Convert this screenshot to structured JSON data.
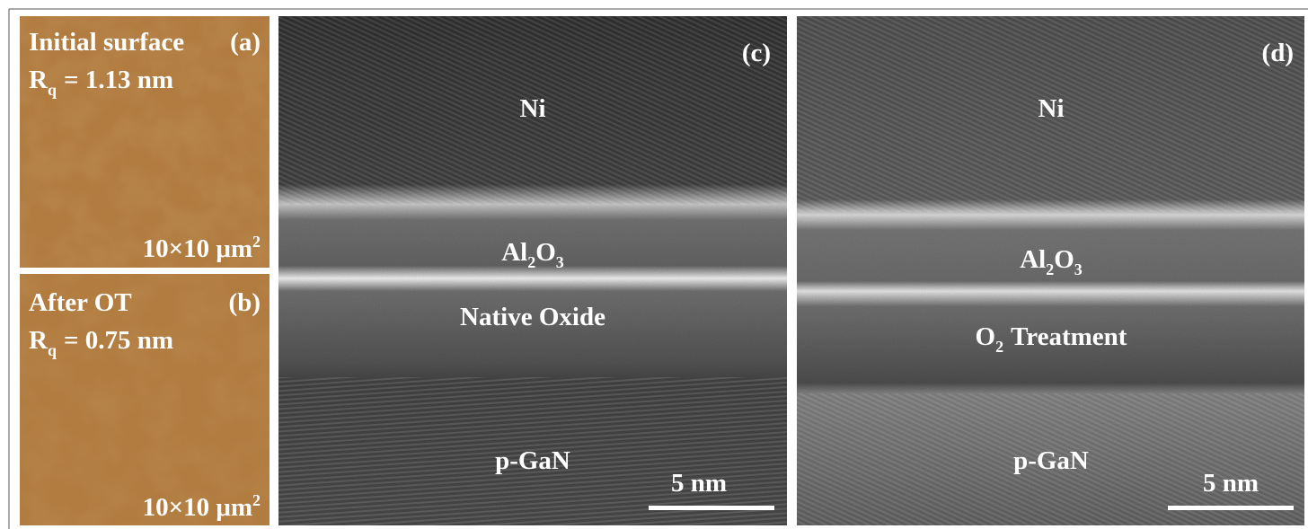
{
  "panels": {
    "a": {
      "title": "Initial surface",
      "label": "(a)",
      "rq": {
        "symbol": "R",
        "subscript": "q",
        "value": "= 1.13 nm"
      },
      "scan": {
        "size": "10×10 μm",
        "superscript": "2"
      }
    },
    "b": {
      "title": "After OT",
      "label": "(b)",
      "rq": {
        "symbol": "R",
        "subscript": "q",
        "value": "= 0.75 nm"
      },
      "scan": {
        "size": "10×10 μm",
        "superscript": "2"
      }
    },
    "c": {
      "label": "(c)",
      "top": "Ni",
      "oxide": {
        "text": "Al",
        "subscript": "2",
        "text2": "O",
        "subscript2": "3"
      },
      "interlayer": "Native Oxide",
      "bottom": "p-GaN",
      "scale_bar": "5 nm"
    },
    "d": {
      "label": "(d)",
      "top": "Ni",
      "oxide": {
        "text": "Al",
        "subscript": "2",
        "text2": "O",
        "subscript2": "3"
      },
      "interlayer": {
        "text": "O",
        "subscript": "2",
        "text2": "Treatment"
      },
      "bottom": "p-GaN",
      "scale_bar": "5 nm"
    }
  }
}
